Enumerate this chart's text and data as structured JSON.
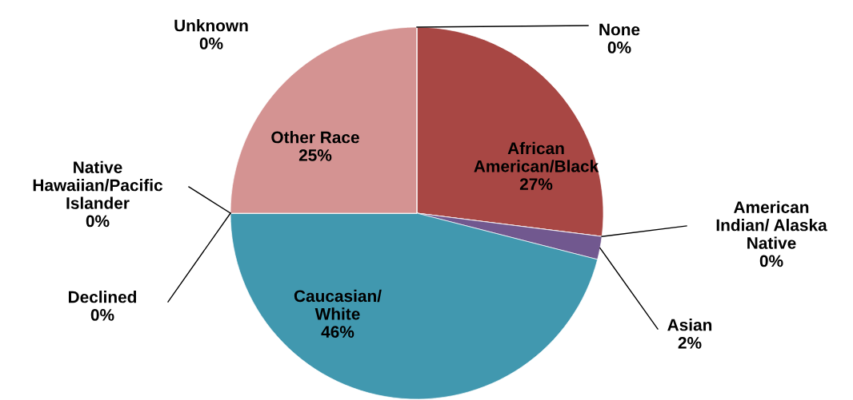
{
  "chart_data": {
    "type": "pie",
    "categories": [
      "None",
      "African\nAmerican/Black",
      "American\nIndian/ Alaska\nNative",
      "Asian",
      "Caucasian/\nWhite",
      "Declined",
      "Native\nHawaiian/Pacific\nIslander",
      "Other Race",
      "Unknown"
    ],
    "values": [
      0,
      27,
      0,
      2,
      46,
      0,
      0,
      25,
      0
    ],
    "colors": [
      "#4bacc6",
      "#a84744",
      "#d4a03a",
      "#71588f",
      "#4198af",
      "#3c6e9c",
      "#8fb04f",
      "#d49392",
      "#4bacc6"
    ],
    "value_labels": [
      "0%",
      "27%",
      "0%",
      "2%",
      "46%",
      "0%",
      "0%",
      "25%",
      "0%"
    ]
  }
}
